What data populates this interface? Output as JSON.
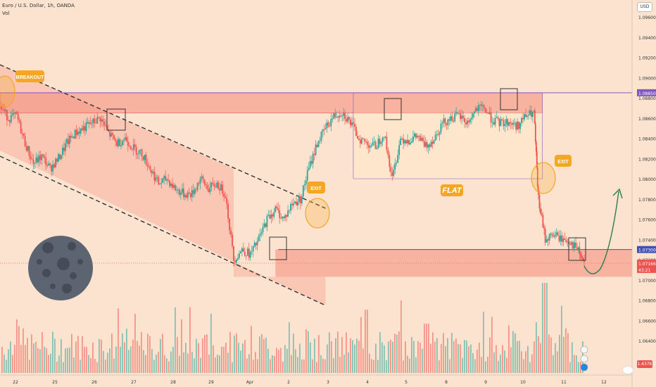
{
  "header": {
    "symbol_line": "Euro / U.S. Dollar, 1h, OANDA",
    "indicator_line": "Vol",
    "currency_label": "USD",
    "volume_badge": "1.437K"
  },
  "colors": {
    "background": "#fce3cf",
    "up": "#26a69a",
    "down": "#ef5350",
    "resistance_zone": "#f48b7a",
    "line_purple": "#7e57c2",
    "line_blue": "#3f51b5",
    "label_orange": "#f5a623",
    "moon": "#5b6470",
    "arrow_green": "#2e7d4f"
  },
  "price_labels": [
    {
      "text": "1.08850",
      "price": 1.0885,
      "color": "#7e57c2"
    },
    {
      "text": "1.07300",
      "price": 1.073,
      "color": "#3f51b5"
    },
    {
      "text": "1.07166",
      "sub": "43:21",
      "price": 1.07166,
      "color": "#ef5350"
    }
  ],
  "annotations": {
    "breakout": "BREAKOUT",
    "exit1": "EXIT",
    "exit2": "EXIT",
    "flat": "FLAT"
  },
  "chart_data": {
    "type": "candlestick",
    "symbol": "Euro / U.S. Dollar",
    "timeframe": "1h",
    "y_axis": {
      "ticks": [
        "1.09600",
        "1.09400",
        "1.09200",
        "1.09000",
        "1.08800",
        "1.08600",
        "1.08400",
        "1.08200",
        "1.08000",
        "1.07800",
        "1.07600",
        "1.07400",
        "1.07200",
        "1.07000",
        "1.06800",
        "1.06600",
        "1.06400"
      ],
      "min": 1.0625,
      "max": 1.0972
    },
    "x_axis": {
      "ticks": [
        "22",
        "25",
        "26",
        "27",
        "28",
        "29",
        "Apr",
        "2",
        "3",
        "4",
        "5",
        "8",
        "9",
        "10",
        "11",
        "12"
      ]
    },
    "close_path": [
      [
        0,
        1.0872
      ],
      [
        0.3,
        1.086
      ],
      [
        0.6,
        1.0862
      ],
      [
        0.9,
        1.0835
      ],
      [
        1.2,
        1.0815
      ],
      [
        1.5,
        1.0822
      ],
      [
        1.8,
        1.081
      ],
      [
        2.1,
        1.082
      ],
      [
        2.4,
        1.0835
      ],
      [
        2.7,
        1.0845
      ],
      [
        3.0,
        1.085
      ],
      [
        3.3,
        1.0855
      ],
      [
        3.6,
        1.086
      ],
      [
        3.9,
        1.0845
      ],
      [
        4.2,
        1.0835
      ],
      [
        4.5,
        1.084
      ],
      [
        4.8,
        1.083
      ],
      [
        5.1,
        1.0825
      ],
      [
        5.4,
        1.081
      ],
      [
        5.7,
        1.0795
      ],
      [
        6.0,
        1.08
      ],
      [
        6.3,
        1.079
      ],
      [
        6.6,
        1.0785
      ],
      [
        6.9,
        1.0785
      ],
      [
        7.2,
        1.08
      ],
      [
        7.5,
        1.079
      ],
      [
        7.8,
        1.0795
      ],
      [
        8.1,
        1.0785
      ],
      [
        8.4,
        1.072
      ],
      [
        8.7,
        1.073
      ],
      [
        9.0,
        1.0725
      ],
      [
        9.3,
        1.074
      ],
      [
        9.6,
        1.076
      ],
      [
        9.9,
        1.077
      ],
      [
        10.2,
        1.076
      ],
      [
        10.5,
        1.0775
      ],
      [
        10.8,
        1.078
      ],
      [
        11.1,
        1.081
      ],
      [
        11.4,
        1.0835
      ],
      [
        11.7,
        1.085
      ],
      [
        12.0,
        1.0862
      ],
      [
        12.3,
        1.0866
      ],
      [
        12.6,
        1.0855
      ],
      [
        12.9,
        1.084
      ],
      [
        13.2,
        1.0835
      ],
      [
        13.5,
        1.0832
      ],
      [
        13.8,
        1.0845
      ],
      [
        14.1,
        1.08
      ],
      [
        14.4,
        1.084
      ],
      [
        14.7,
        1.0838
      ],
      [
        15.0,
        1.0842
      ],
      [
        15.3,
        1.0832
      ],
      [
        15.6,
        1.084
      ],
      [
        15.9,
        1.0855
      ],
      [
        16.2,
        1.086
      ],
      [
        16.5,
        1.0862
      ],
      [
        16.8,
        1.0855
      ],
      [
        17.1,
        1.0868
      ],
      [
        17.4,
        1.087
      ],
      [
        17.7,
        1.0858
      ],
      [
        18.0,
        1.0855
      ],
      [
        18.3,
        1.0856
      ],
      [
        18.6,
        1.0852
      ],
      [
        18.9,
        1.0862
      ],
      [
        19.2,
        1.0865
      ],
      [
        19.35,
        1.078
      ],
      [
        19.6,
        1.074
      ],
      [
        19.9,
        1.0745
      ],
      [
        20.2,
        1.074
      ],
      [
        20.5,
        1.0738
      ],
      [
        20.8,
        1.0728
      ],
      [
        21.0,
        1.0716
      ]
    ],
    "x_tick_index": [
      0.3,
      2.1,
      3.9,
      5.7,
      7.4,
      9.1,
      10.8,
      12.6,
      14.4,
      16.2,
      18.0,
      19.7,
      21.3,
      22.9,
      24.6,
      26.2
    ]
  }
}
